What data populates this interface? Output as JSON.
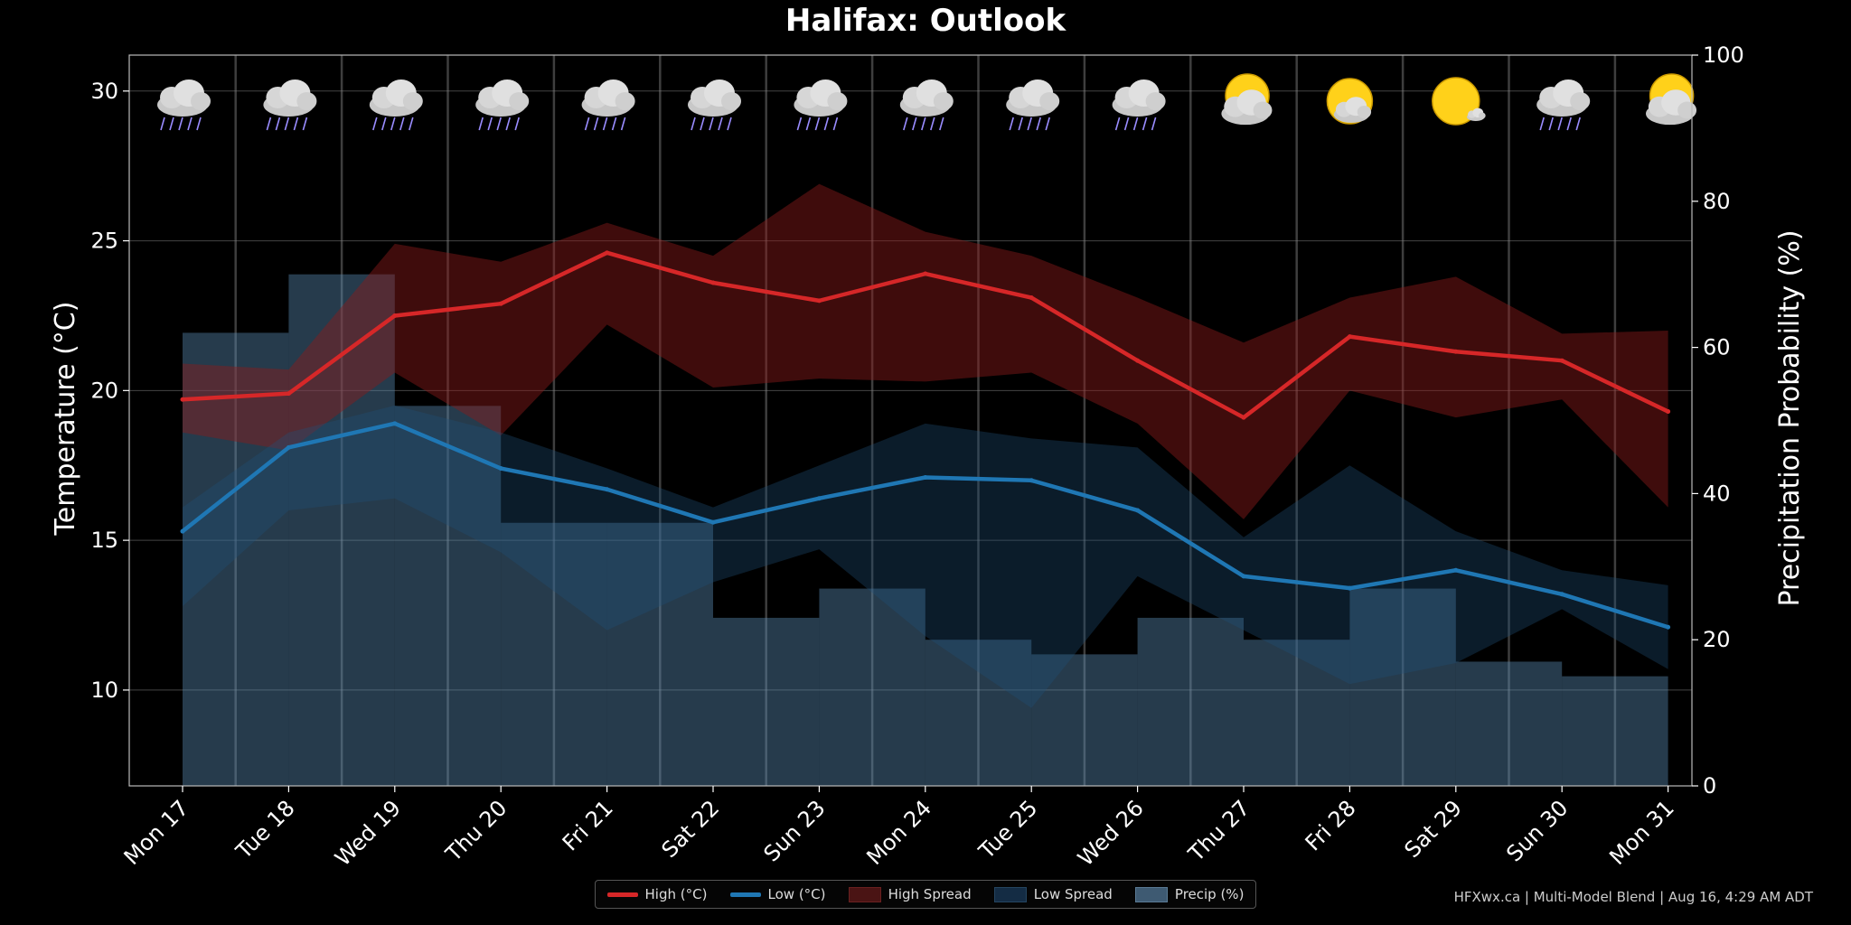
{
  "chart_data": {
    "type": "line",
    "title": "Halifax: Outlook",
    "ylabel": "Temperature (°C)",
    "y2label": "Precipitation Probability (%)",
    "ylim": [
      6.8,
      31.2
    ],
    "y2lim": [
      0,
      100
    ],
    "yticks": [
      10,
      15,
      20,
      25,
      30
    ],
    "y2ticks": [
      0,
      20,
      40,
      60,
      80,
      100
    ],
    "categories": [
      "Mon 17",
      "Tue 18",
      "Wed 19",
      "Thu 20",
      "Fri 21",
      "Sat 22",
      "Sun 23",
      "Mon 24",
      "Tue 25",
      "Wed 26",
      "Thu 27",
      "Fri 28",
      "Sat 29",
      "Sun 30",
      "Mon 31"
    ],
    "weather_icons": [
      "rain-icon",
      "rain-icon",
      "rain-icon",
      "rain-icon",
      "rain-icon",
      "rain-icon",
      "rain-icon",
      "rain-icon",
      "rain-icon",
      "rain-icon",
      "partly-cloudy-icon",
      "mostly-sunny-icon",
      "sunny-icon",
      "rain-icon",
      "partly-cloudy-icon"
    ],
    "series": [
      {
        "name": "High (°C)",
        "color": "#d62728",
        "values": [
          19.7,
          19.9,
          22.5,
          22.9,
          24.6,
          23.6,
          23.0,
          23.9,
          23.1,
          21.0,
          19.1,
          21.8,
          21.3,
          21.0,
          19.3
        ]
      },
      {
        "name": "Low (°C)",
        "color": "#1f77b4",
        "values": [
          15.3,
          18.1,
          18.9,
          17.4,
          16.7,
          15.6,
          16.4,
          17.1,
          17.0,
          16.0,
          13.8,
          13.4,
          14.0,
          13.2,
          12.1
        ]
      },
      {
        "name": "High Spread",
        "color": "#4a1010",
        "upper": [
          20.9,
          20.7,
          24.9,
          24.3,
          25.6,
          24.5,
          26.9,
          25.3,
          24.5,
          23.1,
          21.6,
          23.1,
          23.8,
          21.9,
          22.0
        ],
        "lower": [
          18.6,
          18.0,
          20.6,
          18.5,
          22.2,
          20.1,
          20.4,
          20.3,
          20.6,
          18.9,
          15.7,
          20.0,
          19.1,
          19.7,
          16.1
        ]
      },
      {
        "name": "Low Spread",
        "color": "#102a40",
        "upper": [
          16.1,
          18.6,
          19.5,
          18.6,
          17.4,
          16.1,
          17.5,
          18.9,
          18.4,
          18.1,
          15.1,
          17.5,
          15.3,
          14.0,
          13.5
        ],
        "lower": [
          12.8,
          16.0,
          16.4,
          14.6,
          12.0,
          13.6,
          14.7,
          11.8,
          9.4,
          13.8,
          12.0,
          10.2,
          10.9,
          12.7,
          10.7
        ]
      },
      {
        "name": "Precip (%)",
        "color": "#5a8cb4",
        "steps": [
          62,
          70,
          52,
          36,
          36,
          23,
          27,
          20,
          18,
          23,
          20,
          27,
          17,
          15
        ]
      }
    ],
    "legend_position": "bottom-center",
    "grid": true
  },
  "footer": {
    "credit": "HFXwx.ca | Multi-Model Blend | Aug 16, 4:29 AM ADT"
  }
}
